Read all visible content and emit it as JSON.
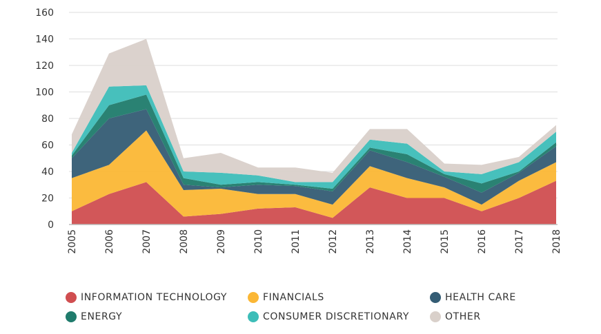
{
  "chart_data": {
    "type": "area",
    "stacked": true,
    "title": "",
    "xlabel": "",
    "ylabel": "",
    "ylim": [
      0,
      160
    ],
    "yticks": [
      0,
      20,
      40,
      60,
      80,
      100,
      120,
      140,
      160
    ],
    "grid": true,
    "legend_position": "bottom",
    "x": [
      "2005",
      "2006",
      "2007",
      "2008",
      "2009",
      "2010",
      "2011",
      "2012",
      "2013",
      "2014",
      "2015",
      "2016",
      "2017",
      "2018"
    ],
    "series": [
      {
        "name": "INFORMATION TECHNOLOGY",
        "color": "#d04e50",
        "values": [
          10,
          23,
          32,
          6,
          8,
          12,
          13,
          5,
          28,
          20,
          20,
          10,
          20,
          33
        ]
      },
      {
        "name": "FINANCIALS",
        "color": "#fbb735",
        "values": [
          25,
          22,
          39,
          20,
          19,
          11,
          10,
          10,
          16,
          15,
          8,
          5,
          13,
          14
        ]
      },
      {
        "name": "HEALTH CARE",
        "color": "#345c74",
        "values": [
          15,
          35,
          16,
          4,
          1,
          7,
          6,
          10,
          12,
          12,
          8,
          9,
          6,
          12
        ]
      },
      {
        "name": "ENERGY",
        "color": "#1f7b6c",
        "values": [
          2,
          10,
          11,
          5,
          2,
          2,
          1,
          2,
          2,
          6,
          2,
          7,
          1,
          3
        ]
      },
      {
        "name": "CONSUMER DISCRETIONARY",
        "color": "#3dbdb8",
        "values": [
          2,
          14,
          7,
          5,
          9,
          5,
          2,
          5,
          6,
          8,
          2,
          7,
          7,
          8
        ]
      },
      {
        "name": "OTHER",
        "color": "#d9d0ca",
        "values": [
          14,
          25,
          35,
          10,
          15,
          6,
          11,
          7,
          8,
          11,
          6,
          7,
          4,
          5
        ]
      }
    ]
  }
}
